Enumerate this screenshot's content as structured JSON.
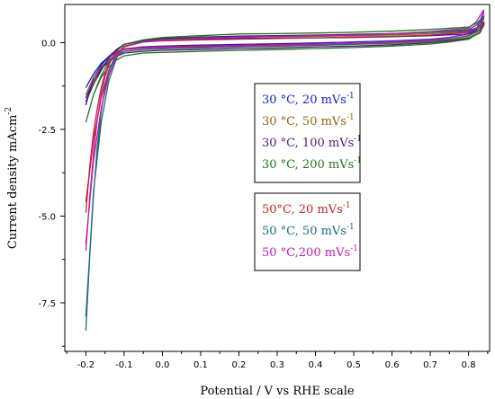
{
  "chart_data": {
    "type": "line",
    "xlabel": "Potential / V vs RHE scale",
    "ylabel": "Current density mAcm",
    "ylabel_sup": "-2",
    "xlim": [
      -0.255,
      0.855
    ],
    "ylim": [
      -8.9,
      1.1
    ],
    "x_ticks": [
      -0.2,
      -0.1,
      0.0,
      0.1,
      0.2,
      0.3,
      0.4,
      0.5,
      0.6,
      0.7,
      0.8
    ],
    "x_tick_labels": [
      "-0.2",
      "-0.1",
      "0.0",
      "0.1",
      "0.2",
      "0.3",
      "0.4",
      "0.5",
      "0.6",
      "0.7",
      "0.8"
    ],
    "y_ticks": [
      0.0,
      -2.5,
      -5.0,
      -7.5
    ],
    "y_tick_labels": [
      "0.0",
      "-2.5",
      "-5.0",
      "-7.5"
    ],
    "grid": false,
    "legend_placement": "center-right",
    "legend_groups": [
      [
        {
          "label": "30 °C, 20 mVs",
          "sup": "-1",
          "color": "#1a1ad8"
        },
        {
          "label": "30 °C, 50 mVs",
          "sup": "-1",
          "color": "#8c6414"
        },
        {
          "label": "30 °C, 100 mVs",
          "sup": "-1",
          "color": "#4a1a7a"
        },
        {
          "label": "30 °C, 200 mVs",
          "sup": "-1",
          "color": "#1a7a1a"
        }
      ],
      [
        {
          "label": "50°C, 20 mVs",
          "sup": "-1",
          "color": "#c81e2a"
        },
        {
          "label": "50 °C, 50 mVs",
          "sup": "-1",
          "color": "#1a6e78"
        },
        {
          "label": "50 °C,200 mVs",
          "sup": "-1",
          "color": "#c01aa8"
        }
      ]
    ],
    "series": [
      {
        "color": "#1a1ad8",
        "x": [
          -0.2,
          -0.18,
          -0.16,
          -0.14,
          -0.12,
          -0.1,
          -0.05,
          0.0,
          0.1,
          0.2,
          0.3,
          0.4,
          0.5,
          0.6,
          0.7,
          0.75,
          0.8,
          0.83,
          0.84,
          0.82,
          0.8,
          0.7,
          0.6,
          0.5,
          0.4,
          0.3,
          0.2,
          0.1,
          0.0,
          -0.05,
          -0.1,
          -0.12,
          -0.14,
          -0.16,
          -0.18,
          -0.2
        ],
        "y": [
          -1.3,
          -0.9,
          -0.6,
          -0.4,
          -0.27,
          -0.18,
          -0.12,
          -0.1,
          -0.07,
          -0.05,
          -0.03,
          -0.01,
          0.02,
          0.05,
          0.1,
          0.15,
          0.25,
          0.45,
          0.9,
          0.35,
          0.25,
          0.2,
          0.17,
          0.15,
          0.14,
          0.13,
          0.12,
          0.1,
          0.07,
          0.05,
          -0.05,
          -0.2,
          -0.4,
          -0.65,
          -1.0,
          -1.8
        ]
      },
      {
        "color": "#8c6414",
        "x": [
          -0.2,
          -0.18,
          -0.16,
          -0.14,
          -0.12,
          -0.1,
          -0.05,
          0.0,
          0.1,
          0.2,
          0.3,
          0.4,
          0.5,
          0.6,
          0.7,
          0.75,
          0.8,
          0.83,
          0.84,
          0.82,
          0.8,
          0.7,
          0.6,
          0.5,
          0.4,
          0.3,
          0.2,
          0.1,
          0.0,
          -0.05,
          -0.1,
          -0.12,
          -0.14,
          -0.16,
          -0.18,
          -0.2
        ],
        "y": [
          -1.5,
          -1.0,
          -0.7,
          -0.5,
          -0.35,
          -0.25,
          -0.2,
          -0.18,
          -0.15,
          -0.12,
          -0.1,
          -0.08,
          -0.05,
          -0.02,
          0.03,
          0.07,
          0.15,
          0.3,
          0.5,
          0.4,
          0.32,
          0.26,
          0.22,
          0.2,
          0.18,
          0.17,
          0.16,
          0.14,
          0.1,
          0.05,
          -0.05,
          -0.2,
          -0.45,
          -0.75,
          -1.1,
          -1.6
        ]
      },
      {
        "color": "#4a1a7a",
        "x": [
          -0.2,
          -0.18,
          -0.16,
          -0.14,
          -0.12,
          -0.1,
          -0.05,
          0.0,
          0.1,
          0.2,
          0.3,
          0.4,
          0.5,
          0.6,
          0.7,
          0.75,
          0.8,
          0.83,
          0.84,
          0.82,
          0.8,
          0.7,
          0.6,
          0.5,
          0.4,
          0.3,
          0.2,
          0.1,
          0.0,
          -0.05,
          -0.1,
          -0.12,
          -0.14,
          -0.16,
          -0.18,
          -0.2
        ],
        "y": [
          -1.6,
          -1.1,
          -0.75,
          -0.55,
          -0.4,
          -0.3,
          -0.25,
          -0.22,
          -0.2,
          -0.17,
          -0.15,
          -0.12,
          -0.1,
          -0.06,
          0.0,
          0.05,
          0.12,
          0.28,
          0.55,
          0.42,
          0.35,
          0.3,
          0.26,
          0.24,
          0.22,
          0.2,
          0.19,
          0.16,
          0.12,
          0.06,
          -0.05,
          -0.2,
          -0.45,
          -0.8,
          -1.2,
          -1.7
        ]
      },
      {
        "color": "#1a7a1a",
        "x": [
          -0.2,
          -0.18,
          -0.16,
          -0.14,
          -0.12,
          -0.1,
          -0.05,
          0.0,
          0.1,
          0.2,
          0.3,
          0.4,
          0.5,
          0.6,
          0.7,
          0.75,
          0.8,
          0.83,
          0.84,
          0.82,
          0.8,
          0.7,
          0.6,
          0.5,
          0.4,
          0.3,
          0.2,
          0.1,
          0.0,
          -0.05,
          -0.1,
          -0.12,
          -0.14,
          -0.16,
          -0.18,
          -0.2
        ],
        "y": [
          -2.3,
          -1.5,
          -1.0,
          -0.7,
          -0.5,
          -0.38,
          -0.3,
          -0.28,
          -0.25,
          -0.22,
          -0.2,
          -0.17,
          -0.14,
          -0.1,
          -0.04,
          0.02,
          0.1,
          0.3,
          0.75,
          0.55,
          0.45,
          0.38,
          0.33,
          0.3,
          0.28,
          0.26,
          0.25,
          0.2,
          0.15,
          0.08,
          -0.05,
          -0.25,
          -0.55,
          -0.95,
          -1.5,
          -2.3
        ]
      },
      {
        "color": "#c81e2a",
        "x": [
          -0.2,
          -0.19,
          -0.18,
          -0.17,
          -0.16,
          -0.15,
          -0.14,
          -0.13,
          -0.12,
          -0.1,
          -0.05,
          0.0,
          0.1,
          0.2,
          0.3,
          0.4,
          0.5,
          0.6,
          0.7,
          0.75,
          0.8,
          0.83,
          0.84,
          0.82,
          0.8,
          0.7,
          0.6,
          0.5,
          0.4,
          0.3,
          0.2,
          0.1,
          0.0,
          -0.05,
          -0.1,
          -0.12,
          -0.14,
          -0.16,
          -0.18,
          -0.2
        ],
        "y": [
          -4.9,
          -3.6,
          -2.6,
          -1.9,
          -1.3,
          -0.9,
          -0.6,
          -0.4,
          -0.28,
          -0.18,
          -0.14,
          -0.12,
          -0.1,
          -0.08,
          -0.06,
          -0.04,
          -0.02,
          0.01,
          0.06,
          0.1,
          0.2,
          0.35,
          0.6,
          0.4,
          0.3,
          0.22,
          0.18,
          0.16,
          0.14,
          0.12,
          0.1,
          0.08,
          0.05,
          0.02,
          -0.1,
          -0.35,
          -0.8,
          -1.6,
          -2.8,
          -4.6
        ]
      },
      {
        "color": "#1a6e78",
        "x": [
          -0.2,
          -0.19,
          -0.18,
          -0.17,
          -0.16,
          -0.15,
          -0.14,
          -0.13,
          -0.12,
          -0.1,
          -0.05,
          0.0,
          0.1,
          0.2,
          0.3,
          0.4,
          0.5,
          0.6,
          0.7,
          0.75,
          0.8,
          0.83,
          0.84,
          0.82,
          0.8,
          0.7,
          0.6,
          0.5,
          0.4,
          0.3,
          0.2,
          0.1,
          0.0,
          -0.05,
          -0.1,
          -0.12,
          -0.14,
          -0.16,
          -0.18,
          -0.2
        ],
        "y": [
          -8.3,
          -6.2,
          -4.4,
          -3.0,
          -2.0,
          -1.3,
          -0.85,
          -0.55,
          -0.38,
          -0.25,
          -0.2,
          -0.17,
          -0.15,
          -0.12,
          -0.1,
          -0.07,
          -0.04,
          0.0,
          0.05,
          0.1,
          0.2,
          0.4,
          0.7,
          0.5,
          0.38,
          0.3,
          0.25,
          0.22,
          0.2,
          0.18,
          0.16,
          0.13,
          0.08,
          0.03,
          -0.12,
          -0.45,
          -1.1,
          -2.3,
          -4.3,
          -7.9
        ]
      },
      {
        "color": "#c01aa8",
        "x": [
          -0.2,
          -0.19,
          -0.18,
          -0.17,
          -0.16,
          -0.15,
          -0.14,
          -0.13,
          -0.12,
          -0.1,
          -0.05,
          0.0,
          0.1,
          0.2,
          0.3,
          0.4,
          0.5,
          0.6,
          0.7,
          0.75,
          0.8,
          0.83,
          0.84,
          0.82,
          0.8,
          0.7,
          0.6,
          0.5,
          0.4,
          0.3,
          0.2,
          0.1,
          0.0,
          -0.05,
          -0.1,
          -0.12,
          -0.14,
          -0.16,
          -0.18,
          -0.2
        ],
        "y": [
          -6.0,
          -4.5,
          -3.2,
          -2.2,
          -1.5,
          -1.0,
          -0.65,
          -0.42,
          -0.3,
          -0.2,
          -0.16,
          -0.14,
          -0.12,
          -0.1,
          -0.08,
          -0.05,
          -0.02,
          0.02,
          0.08,
          0.14,
          0.28,
          0.5,
          0.95,
          0.6,
          0.42,
          0.32,
          0.26,
          0.22,
          0.2,
          0.18,
          0.16,
          0.12,
          0.07,
          0.02,
          -0.12,
          -0.4,
          -0.95,
          -1.9,
          -3.4,
          -5.8
        ]
      }
    ]
  }
}
